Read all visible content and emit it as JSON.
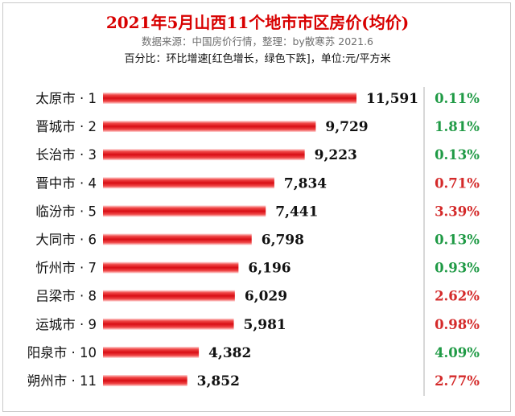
{
  "chart_data": {
    "type": "bar",
    "orientation": "horizontal",
    "title": "2021年5月山西11个地市市区房价(均价)",
    "subtitle": "数据来源：中国房价行情，整理：by散寒苏 2021.6",
    "note": "百分比：环比增速[红色增长，绿色下跌]，单位:元/平方米",
    "categories": [
      "太原市 · 1",
      "晋城市 · 2",
      "长治市 · 3",
      "晋中市 · 4",
      "临汾市 · 5",
      "大同市 · 6",
      "忻州市 · 7",
      "吕梁市 · 8",
      "运城市 · 9",
      "阳泉市 · 10",
      "朔州市 · 11"
    ],
    "values": [
      11591,
      9729,
      9223,
      7834,
      7441,
      6798,
      6196,
      6029,
      5981,
      4382,
      3852
    ],
    "value_labels": [
      "11,591",
      "9,729",
      "9,223",
      "7,834",
      "7,441",
      "6,798",
      "6,196",
      "6,029",
      "5,981",
      "4,382",
      "3,852"
    ],
    "mom_change": [
      "0.11%",
      "1.81%",
      "0.13%",
      "0.71%",
      "3.39%",
      "0.13%",
      "0.93%",
      "2.62%",
      "0.98%",
      "4.09%",
      "2.77%"
    ],
    "mom_direction": [
      "down",
      "down",
      "down",
      "up",
      "up",
      "down",
      "down",
      "up",
      "up",
      "down",
      "up"
    ],
    "xlim": [
      0,
      11591
    ],
    "colors": {
      "bar": "#e8151b",
      "up": "#d42a2a",
      "down": "#1f9a45",
      "title": "#d80000"
    }
  }
}
